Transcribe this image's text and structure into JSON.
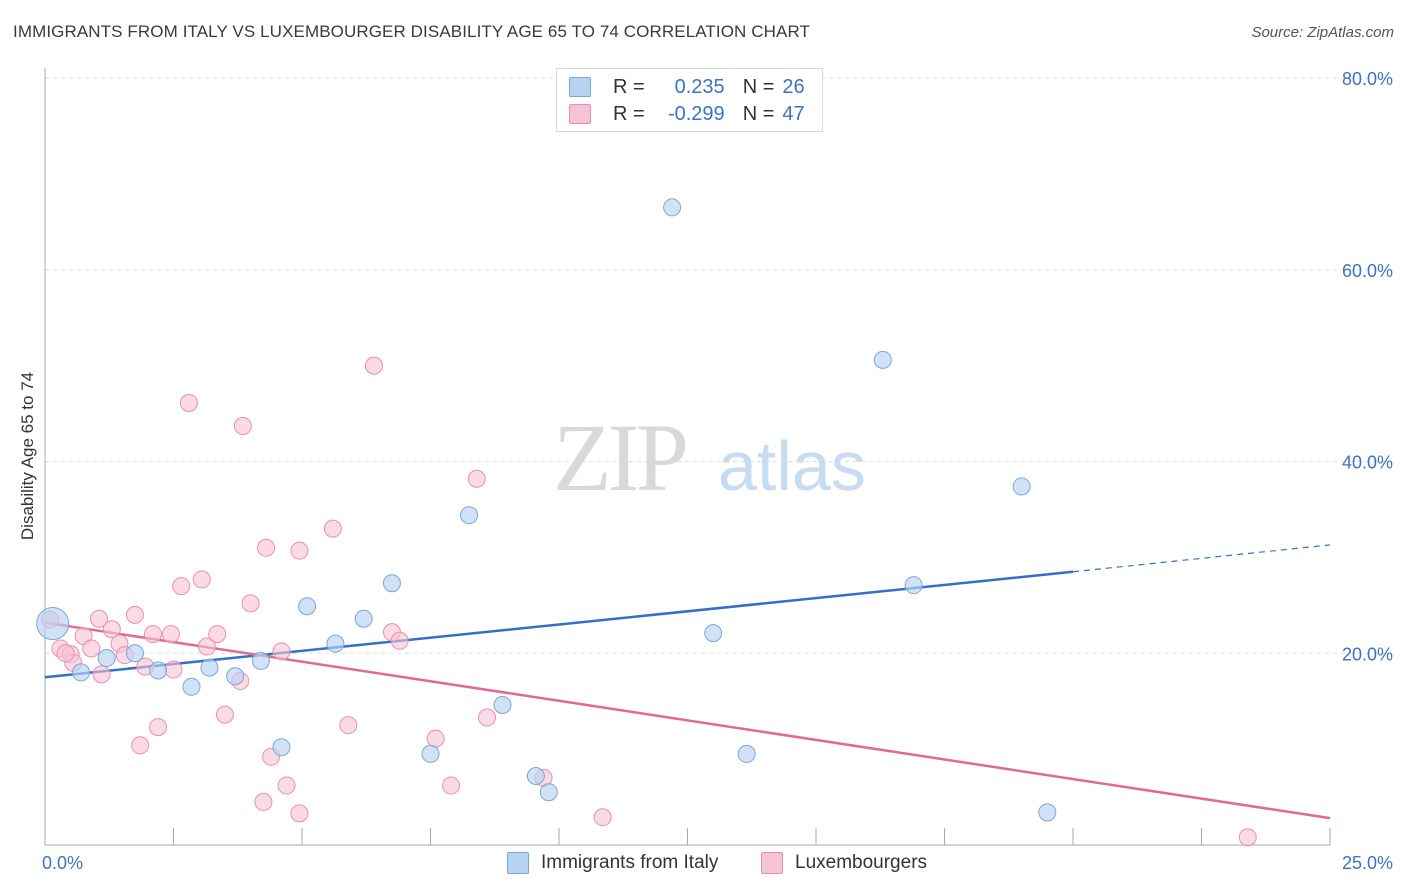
{
  "title": "IMMIGRANTS FROM ITALY VS LUXEMBOURGER DISABILITY AGE 65 TO 74 CORRELATION CHART",
  "source": "Source: ZipAtlas.com",
  "watermark": {
    "zip": "ZIP",
    "atlas": "atlas"
  },
  "legend": {
    "r_label": "R =",
    "n_label": "N =",
    "italy": {
      "r": "0.235",
      "n": "26"
    },
    "luxembourgers": {
      "r": "-0.299",
      "n": "47"
    }
  },
  "colors": {
    "italy_fill": "#b8d2f2",
    "italy_stroke": "#7aa6dc",
    "italy_line": "#2f72c8",
    "lux_fill": "#f6c3d4",
    "lux_stroke": "#ea8fae",
    "lux_line": "#e06a95",
    "value_text": "#3b73c6",
    "grid": "#dddddd"
  },
  "chart_data": {
    "type": "scatter",
    "ylabel": "Disability Age 65 to 74",
    "xlim": [
      0,
      25
    ],
    "ylim": [
      0,
      80
    ],
    "x_tick_labels": [
      "0.0%",
      "25.0%"
    ],
    "y_ticks": [
      {
        "value": 20,
        "label": "20.0%"
      },
      {
        "value": 40,
        "label": "40.0%"
      },
      {
        "value": 60,
        "label": "60.0%"
      },
      {
        "value": 80,
        "label": "80.0%"
      }
    ],
    "series": [
      {
        "name": "Immigrants from Italy",
        "points": [
          [
            0.15,
            23.1
          ],
          [
            0.7,
            18.0
          ],
          [
            1.2,
            19.5
          ],
          [
            1.75,
            20.0
          ],
          [
            2.2,
            18.2
          ],
          [
            2.85,
            16.5
          ],
          [
            3.2,
            18.5
          ],
          [
            3.7,
            17.6
          ],
          [
            4.2,
            19.2
          ],
          [
            4.6,
            10.2
          ],
          [
            5.1,
            24.9
          ],
          [
            5.65,
            21.0
          ],
          [
            6.2,
            23.6
          ],
          [
            6.75,
            27.3
          ],
          [
            7.5,
            9.5
          ],
          [
            8.25,
            34.4
          ],
          [
            8.9,
            14.6
          ],
          [
            9.55,
            7.2
          ],
          [
            9.8,
            5.5
          ],
          [
            12.2,
            66.5
          ],
          [
            13.0,
            22.1
          ],
          [
            13.65,
            9.5
          ],
          [
            16.3,
            50.6
          ],
          [
            16.9,
            27.1
          ],
          [
            19.0,
            37.4
          ],
          [
            19.5,
            3.4
          ]
        ],
        "trend": {
          "x0": 0,
          "y0": 17.5,
          "x1": 20,
          "y1": 28.5,
          "dash_to_x": 25,
          "dash_to_y": 31.3
        }
      },
      {
        "name": "Luxembourgers",
        "points": [
          [
            0.1,
            23.5
          ],
          [
            0.3,
            20.5
          ],
          [
            0.5,
            19.9
          ],
          [
            0.55,
            19.0
          ],
          [
            0.75,
            21.8
          ],
          [
            0.9,
            20.5
          ],
          [
            1.05,
            23.6
          ],
          [
            1.1,
            17.8
          ],
          [
            1.3,
            22.5
          ],
          [
            1.45,
            21.0
          ],
          [
            1.55,
            19.8
          ],
          [
            1.75,
            24.0
          ],
          [
            1.85,
            10.4
          ],
          [
            1.95,
            18.6
          ],
          [
            2.1,
            22.0
          ],
          [
            2.2,
            12.3
          ],
          [
            2.45,
            22.0
          ],
          [
            2.5,
            18.3
          ],
          [
            2.65,
            27.0
          ],
          [
            2.8,
            46.1
          ],
          [
            3.05,
            27.7
          ],
          [
            3.15,
            20.7
          ],
          [
            3.35,
            22.0
          ],
          [
            3.5,
            13.6
          ],
          [
            3.8,
            17.1
          ],
          [
            3.85,
            43.7
          ],
          [
            4.0,
            25.2
          ],
          [
            4.25,
            4.5
          ],
          [
            4.3,
            31.0
          ],
          [
            4.4,
            9.2
          ],
          [
            4.6,
            20.2
          ],
          [
            4.7,
            6.2
          ],
          [
            4.95,
            3.3
          ],
          [
            4.95,
            30.7
          ],
          [
            5.6,
            33.0
          ],
          [
            5.9,
            12.5
          ],
          [
            6.4,
            50.0
          ],
          [
            6.75,
            22.2
          ],
          [
            6.9,
            21.3
          ],
          [
            7.6,
            11.1
          ],
          [
            7.9,
            6.2
          ],
          [
            8.4,
            38.2
          ],
          [
            8.6,
            13.3
          ],
          [
            9.7,
            7.0
          ],
          [
            10.85,
            2.9
          ],
          [
            23.4,
            0.8
          ],
          [
            0.4,
            20.0
          ]
        ],
        "trend": {
          "x0": 0,
          "y0": 23.2,
          "x1": 25,
          "y1": 2.8
        }
      }
    ]
  }
}
